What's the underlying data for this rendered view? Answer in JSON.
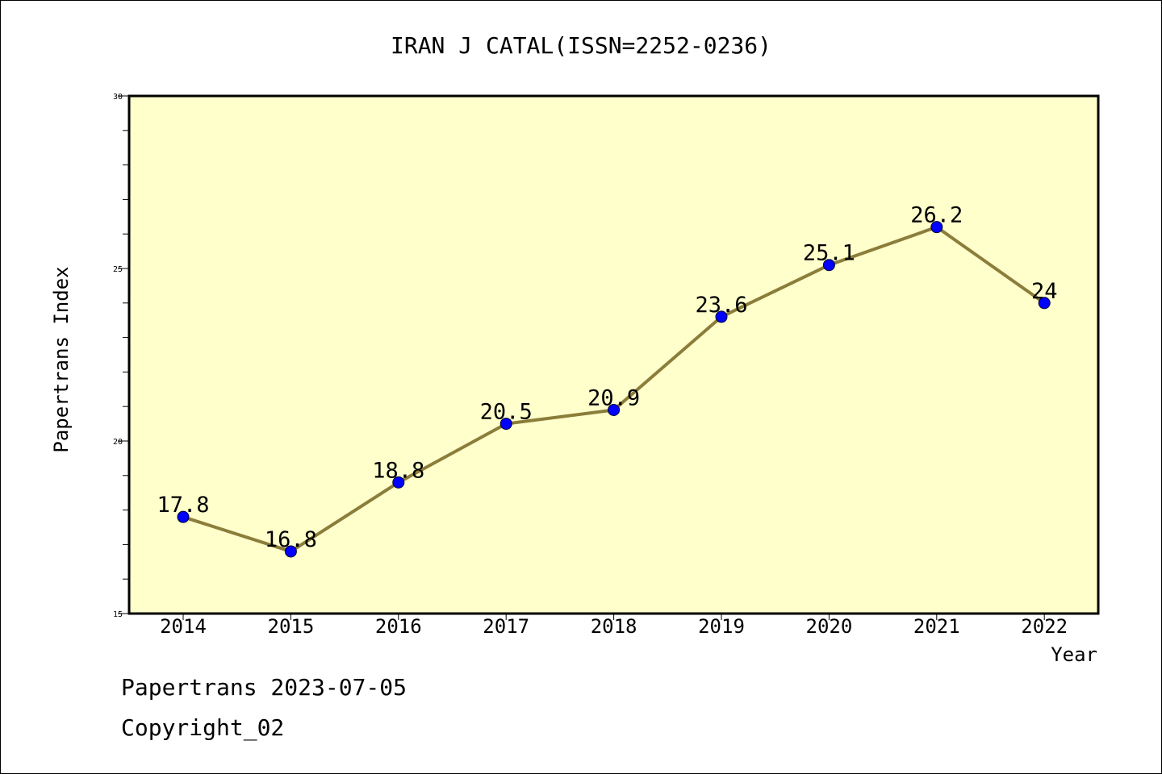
{
  "chart_data": {
    "type": "line",
    "title": "IRAN J CATAL(ISSN=2252-0236)",
    "xlabel": "Year",
    "ylabel": "Papertrans Index",
    "categories": [
      "2014",
      "2015",
      "2016",
      "2017",
      "2018",
      "2019",
      "2020",
      "2021",
      "2022"
    ],
    "series": [
      {
        "values": [
          17.8,
          16.8,
          18.8,
          20.5,
          20.9,
          23.6,
          25.1,
          26.2,
          24
        ],
        "labels": [
          "17.8",
          "16.8",
          "18.8",
          "20.5",
          "20.9",
          "23.6",
          "25.1",
          "26.2",
          "24"
        ]
      }
    ],
    "ylim": [
      15,
      30
    ],
    "y_ticks": [
      "15",
      "20",
      "25",
      "30"
    ],
    "grid": false,
    "colors": {
      "plot_background": "#ffffcc",
      "line": "#8b7d3a",
      "marker": "#0000ff"
    }
  },
  "footer": {
    "line1": "Papertrans 2023-07-05",
    "line2": "Copyright_02"
  }
}
